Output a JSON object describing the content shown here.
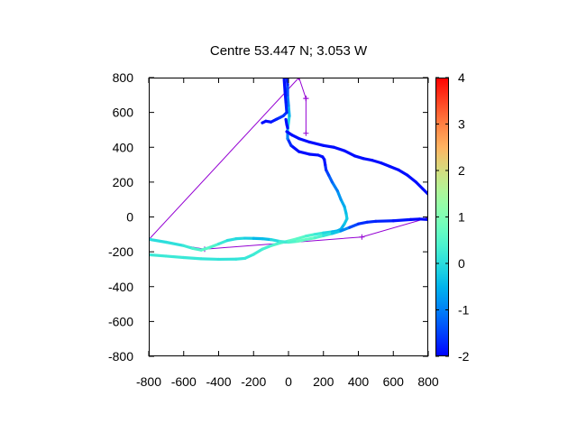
{
  "chart_data": {
    "type": "scatter",
    "title": "Centre 53.447 N; 3.053  W",
    "xlabel": "",
    "ylabel": "",
    "xlim": [
      -800,
      800
    ],
    "ylim": [
      -800,
      800
    ],
    "x_ticks": [
      -800,
      -600,
      -400,
      -200,
      0,
      200,
      400,
      600,
      800
    ],
    "y_ticks": [
      -800,
      -600,
      -400,
      -200,
      0,
      200,
      400,
      600,
      800
    ],
    "grid": false,
    "legend": "none",
    "colorbar": {
      "min": -2,
      "max": 4,
      "ticks": [
        -2,
        -1,
        0,
        1,
        2,
        3,
        4
      ],
      "colormap": "rainbow"
    },
    "series": [
      {
        "points": [
          [
            -820,
            -215
          ],
          [
            -700,
            -225
          ],
          [
            -600,
            -233
          ],
          [
            -500,
            -240
          ],
          [
            -400,
            -243
          ],
          [
            -300,
            -242
          ],
          [
            -250,
            -238
          ],
          [
            -200,
            -215
          ],
          [
            -150,
            -185
          ],
          [
            -100,
            -165
          ],
          [
            -50,
            -150
          ],
          [
            0,
            -138
          ],
          [
            50,
            -125
          ],
          [
            100,
            -110
          ],
          [
            150,
            -100
          ],
          [
            200,
            -92
          ],
          [
            250,
            -85
          ],
          [
            280,
            -80
          ],
          [
            300,
            -70
          ],
          [
            320,
            -40
          ],
          [
            335,
            -10
          ],
          [
            330,
            20
          ],
          [
            320,
            60
          ],
          [
            300,
            100
          ],
          [
            280,
            150
          ],
          [
            250,
            200
          ],
          [
            230,
            240
          ],
          [
            215,
            270
          ],
          [
            210,
            300
          ],
          [
            205,
            330
          ],
          [
            195,
            345
          ],
          [
            170,
            355
          ],
          [
            120,
            360
          ],
          [
            60,
            375
          ],
          [
            15,
            410
          ],
          [
            -5,
            450
          ],
          [
            -5,
            500
          ],
          [
            0,
            540
          ],
          [
            5,
            580
          ],
          [
            0,
            640
          ],
          [
            -5,
            700
          ],
          [
            -5,
            760
          ],
          [
            -10,
            800
          ]
        ],
        "color_values": [
          0.2,
          0.2,
          0.2,
          0.15,
          0.1,
          0.1,
          0.15,
          0.2,
          0.3,
          0.4,
          0.5,
          0.6,
          0.6,
          0.5,
          0.3,
          0.1,
          -0.3,
          -0.6,
          -0.6,
          -0.4,
          -0.2,
          -0.3,
          -0.5,
          -0.7,
          -0.9,
          -1.1,
          -1.4,
          -1.6,
          -1.8,
          -1.9,
          -1.9,
          -1.9,
          -1.9,
          -1.9,
          -1.9,
          -1.5,
          -0.5,
          0.0,
          -0.3,
          -0.8,
          -1.2,
          -1.6,
          -1.9
        ]
      },
      {
        "points": [
          [
            -820,
            -125
          ],
          [
            -700,
            -145
          ],
          [
            -600,
            -165
          ],
          [
            -550,
            -180
          ],
          [
            -500,
            -190
          ],
          [
            -450,
            -175
          ],
          [
            -400,
            -155
          ],
          [
            -350,
            -135
          ],
          [
            -300,
            -125
          ],
          [
            -250,
            -122
          ],
          [
            -200,
            -123
          ],
          [
            -150,
            -125
          ],
          [
            -100,
            -130
          ],
          [
            -50,
            -140
          ],
          [
            0,
            -145
          ],
          [
            50,
            -140
          ],
          [
            100,
            -130
          ],
          [
            150,
            -120
          ],
          [
            200,
            -108
          ],
          [
            250,
            -95
          ],
          [
            300,
            -80
          ],
          [
            350,
            -60
          ],
          [
            400,
            -40
          ],
          [
            450,
            -30
          ],
          [
            500,
            -25
          ],
          [
            600,
            -22
          ],
          [
            700,
            -15
          ],
          [
            750,
            -12
          ],
          [
            800,
            -15
          ]
        ],
        "color_values": [
          0.0,
          0.0,
          0.1,
          0.3,
          0.5,
          0.6,
          0.3,
          0.1,
          -0.1,
          0.0,
          -0.4,
          -0.5,
          -0.3,
          0.2,
          0.3,
          0.6,
          0.7,
          0.6,
          0.3,
          0.0,
          -0.6,
          -1.3,
          -1.6,
          -1.7,
          -1.7,
          -1.8,
          -1.9,
          -2.0,
          -1.9
        ]
      },
      {
        "points": [
          [
            -10,
            490
          ],
          [
            20,
            470
          ],
          [
            60,
            450
          ],
          [
            120,
            430
          ],
          [
            200,
            410
          ],
          [
            260,
            400
          ],
          [
            320,
            380
          ],
          [
            380,
            350
          ],
          [
            430,
            335
          ],
          [
            480,
            325
          ],
          [
            530,
            310
          ],
          [
            580,
            290
          ],
          [
            630,
            270
          ],
          [
            680,
            240
          ],
          [
            730,
            200
          ],
          [
            770,
            160
          ],
          [
            800,
            130
          ]
        ],
        "color_values": [
          -1.9,
          -1.9,
          -1.9,
          -1.9,
          -1.9,
          -1.9,
          -1.9,
          -1.9,
          -1.9,
          -1.9,
          -1.9,
          -1.9,
          -1.9,
          -1.9,
          -1.9,
          -1.9,
          -1.9
        ]
      },
      {
        "points": [
          [
            -150,
            540
          ],
          [
            -130,
            550
          ],
          [
            -100,
            545
          ],
          [
            -70,
            560
          ],
          [
            -50,
            570
          ],
          [
            -30,
            580
          ],
          [
            -10,
            600
          ],
          [
            -15,
            660
          ],
          [
            -20,
            720
          ],
          [
            -25,
            790
          ]
        ],
        "color_values": [
          -1.9,
          -1.9,
          -1.9,
          -1.8,
          -1.7,
          -1.5,
          -1.7,
          -1.8,
          -1.9,
          -1.9
        ]
      },
      {
        "points": [
          [
            -15,
            560
          ],
          [
            -10,
            530
          ],
          [
            -5,
            510
          ]
        ],
        "color_values": [
          -1.9,
          -1.9,
          -1.9
        ]
      }
    ],
    "reference_track": {
      "color": "#9400d3",
      "points": [
        [
          60,
          800
        ],
        [
          100,
          680
        ],
        [
          100,
          480
        ],
        [
          100,
          680
        ],
        [
          60,
          800
        ],
        [
          -800,
          -130
        ],
        [
          -480,
          -185
        ],
        [
          420,
          -115
        ],
        [
          800,
          -5
        ]
      ]
    }
  }
}
